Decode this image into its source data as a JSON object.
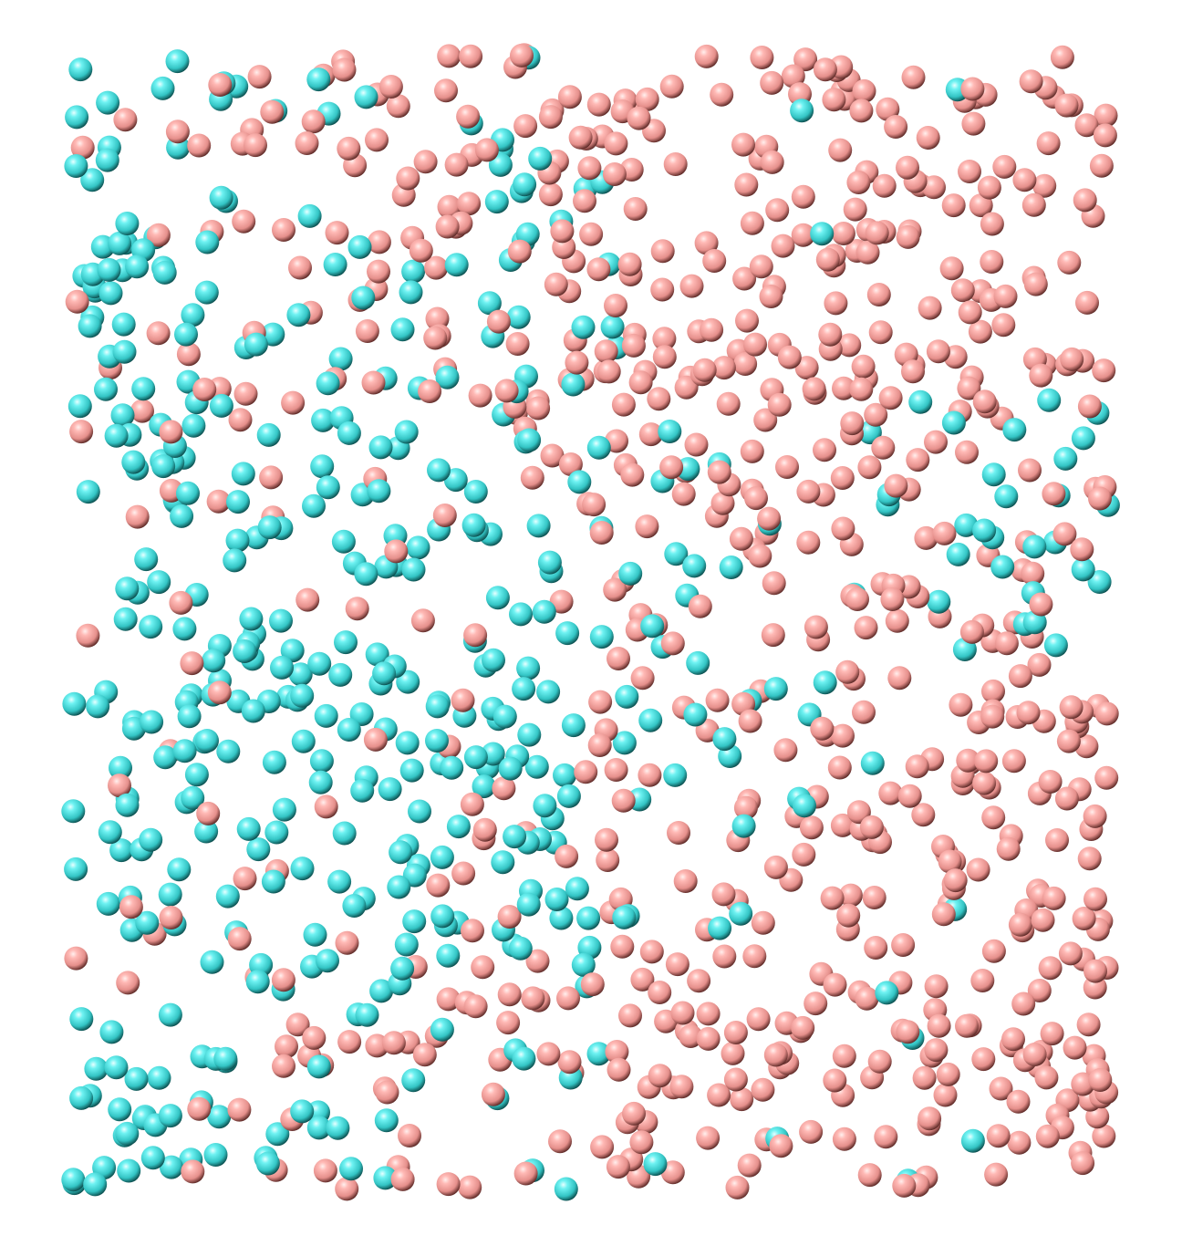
{
  "scene": {
    "description_hidden": "",
    "background_color": "#ffffff",
    "species": [
      {
        "name": "cyan",
        "color": "#4ee6e6",
        "highlight": "#d6ffff",
        "shade": "#0b5a5a"
      },
      {
        "name": "pink",
        "color": "#f7a8a4",
        "highlight": "#ffe8e6",
        "shade": "#6e3330"
      }
    ]
  }
}
